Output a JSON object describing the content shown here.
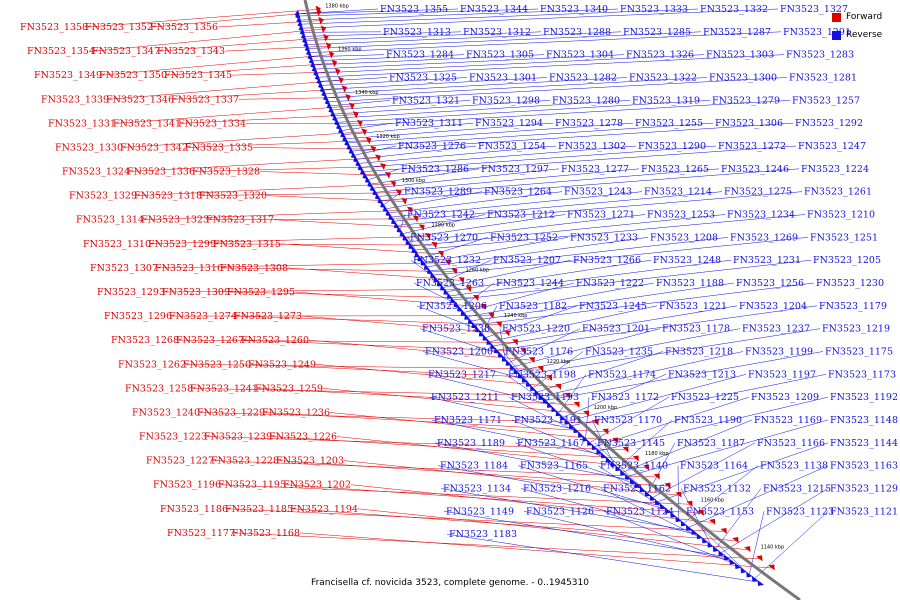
{
  "colors": {
    "forward": "#e00000",
    "reverse": "#1010e0",
    "backbone": "#777777"
  },
  "legend": {
    "forward": "Forward",
    "reverse": "Reverse"
  },
  "caption": "Francisella cf. novicida 3523, complete genome. - 0..1945310",
  "ticks": [
    "1380 kbp",
    "1360 kbp",
    "1340 kbp",
    "1320 kbp",
    "1300 kbp",
    "1280 kbp",
    "1260 kbp",
    "1240 kbp",
    "1220 kbp",
    "1200 kbp",
    "1180 kbp",
    "1160 kbp",
    "1140 kbp"
  ],
  "red_labels": [
    "FN3523_1358",
    "FN3523_1352",
    "FN3523_1356",
    "FN3523_1354",
    "FN3523_1347",
    "FN3523_1343",
    "FN3523_1349",
    "FN3523_1350",
    "FN3523_1345",
    "FN3523_1339",
    "FN3523_1346",
    "FN3523_1337",
    "FN3523_1331",
    "FN3523_1341",
    "FN3523_1334",
    "FN3523_1330",
    "FN3523_1342",
    "FN3523_1335",
    "FN3523_1324",
    "FN3523_1336",
    "FN3523_1328",
    "FN3523_1329",
    "FN3523_1318",
    "FN3523_1320",
    "FN3523_1314",
    "FN3523_1323",
    "FN3523_1317",
    "FN3523_1310",
    "FN3523_1299",
    "FN3523_1315",
    "FN3523_1307",
    "FN3523_1316",
    "FN3523_1308",
    "FN3523_1293",
    "FN3523_1309",
    "FN3523_1295",
    "FN3523_1296",
    "FN3523_1274",
    "FN3523_1273",
    "FN3523_1268",
    "FN3523_1267",
    "FN3523_1260",
    "FN3523_1262",
    "FN3523_1250",
    "FN3523_1249",
    "FN3523_1258",
    "FN3523_1241",
    "FN3523_1259",
    "FN3523_1240",
    "FN3523_1229",
    "FN3523_1236",
    "FN3523_1223",
    "FN3523_1239",
    "FN3523_1226",
    "FN3523_1227",
    "FN3523_1228",
    "FN3523_1203",
    "FN3523_1196",
    "FN3523_1195",
    "FN3523_1202",
    "FN3523_1186",
    "FN3523_1185",
    "FN3523_1194",
    "FN3523_1177",
    "FN3523_1168"
  ],
  "blue_labels": [
    "FN3523_1355",
    "FN3523_1344",
    "FN3523_1340",
    "FN3523_1333",
    "FN3523_1332",
    "FN3523_1327",
    "FN3523_1313",
    "FN3523_1312",
    "FN3523_1288",
    "FN3523_1285",
    "FN3523_1287",
    "FN3523_1291",
    "FN3523_1284",
    "FN3523_1305",
    "FN3523_1304",
    "FN3523_1326",
    "FN3523_1303",
    "FN3523_1283",
    "FN3523_1325",
    "FN3523_1301",
    "FN3523_1282",
    "FN3523_1322",
    "FN3523_1300",
    "FN3523_1281",
    "FN3523_1321",
    "FN3523_1298",
    "FN3523_1280",
    "FN3523_1319",
    "FN3523_1279",
    "FN3523_1257",
    "FN3523_1311",
    "FN3523_1294",
    "FN3523_1278",
    "FN3523_1255",
    "FN3523_1306",
    "FN3523_1292",
    "FN3523_1276",
    "FN3523_1254",
    "FN3523_1302",
    "FN3523_1290",
    "FN3523_1272",
    "FN3523_1247",
    "FN3523_1286",
    "FN3523_1297",
    "FN3523_1277",
    "FN3523_1265",
    "FN3523_1246",
    "FN3523_1224",
    "FN3523_1289",
    "FN3523_1264",
    "FN3523_1243",
    "FN3523_1214",
    "FN3523_1275",
    "FN3523_1261",
    "FN3523_1242",
    "FN3523_1212",
    "FN3523_1271",
    "FN3523_1253",
    "FN3523_1234",
    "FN3523_1210",
    "FN3523_1270",
    "FN3523_1252",
    "FN3523_1233",
    "FN3523_1208",
    "FN3523_1269",
    "FN3523_1251",
    "FN3523_1232",
    "FN3523_1207",
    "FN3523_1266",
    "FN3523_1248",
    "FN3523_1231",
    "FN3523_1205",
    "FN3523_1263",
    "FN3523_1244",
    "FN3523_1222",
    "FN3523_1188",
    "FN3523_1256",
    "FN3523_1230",
    "FN3523_1206",
    "FN3523_1182",
    "FN3523_1245",
    "FN3523_1221",
    "FN3523_1204",
    "FN3523_1179",
    "FN3523_1238",
    "FN3523_1220",
    "FN3523_1201",
    "FN3523_1178",
    "FN3523_1237",
    "FN3523_1219",
    "FN3523_1200",
    "FN3523_1176",
    "FN3523_1235",
    "FN3523_1218",
    "FN3523_1199",
    "FN3523_1175",
    "FN3523_1217",
    "FN3523_1198",
    "FN3523_1174",
    "FN3523_1213",
    "FN3523_1197",
    "FN3523_1173",
    "FN3523_1211",
    "FN3523_1193",
    "FN3523_1172",
    "FN3523_1225",
    "FN3523_1209",
    "FN3523_1192",
    "FN3523_1171",
    "FN3523_1191",
    "FN3523_1170",
    "FN3523_1190",
    "FN3523_1169",
    "FN3523_1148",
    "FN3523_1189",
    "FN3523_1167",
    "FN3523_1145",
    "FN3523_1187",
    "FN3523_1166",
    "FN3523_1144",
    "FN3523_1184",
    "FN3523_1165",
    "FN3523_1140",
    "FN3523_1164",
    "FN3523_1138",
    "FN3523_1163",
    "FN3523_1134",
    "FN3523_1216",
    "FN3523_1162",
    "FN3523_1132",
    "FN3523_1215",
    "FN3523_1129",
    "FN3523_1149",
    "FN3523_1126",
    "FN3523_1124",
    "FN3523_1153",
    "FN3523_1123",
    "FN3523_1121",
    "FN3523_1183"
  ]
}
